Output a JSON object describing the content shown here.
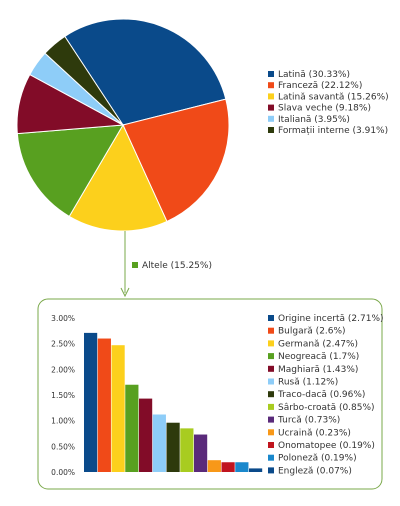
{
  "chart_data": [
    {
      "type": "pie",
      "title": "",
      "slices": [
        {
          "label": "Latină (30.33%)",
          "value": 30.33,
          "color": "#0a4a8a"
        },
        {
          "label": "Franceză (22.12%)",
          "value": 22.12,
          "color": "#f04a18"
        },
        {
          "label": "Latină savantă (15.26%)",
          "value": 15.26,
          "color": "#fcd01c"
        },
        {
          "label": "Altele (15.25%)",
          "value": 15.25,
          "color": "#58a020"
        },
        {
          "label": "Slava veche (9.18%)",
          "value": 9.18,
          "color": "#820c28"
        },
        {
          "label": "Italiană (3.95%)",
          "value": 3.95,
          "color": "#8ecdf8"
        },
        {
          "label": "Formații interne (3.91%)",
          "value": 3.91,
          "color": "#2e3a0c"
        }
      ],
      "legend": {
        "position": "right",
        "items": [
          {
            "label": "Latină (30.33%)",
            "color": "#0a4a8a"
          },
          {
            "label": "Franceză (22.12%)",
            "color": "#f04a18"
          },
          {
            "label": "Latină savantă (15.26%)",
            "color": "#fcd01c"
          },
          {
            "label": "Slava veche (9.18%)",
            "color": "#820c28"
          },
          {
            "label": "Italiană (3.95%)",
            "color": "#8ecdf8"
          },
          {
            "label": "Formații interne (3.91%)",
            "color": "#2e3a0c"
          }
        ]
      },
      "callout_label": "Altele (15.25%)",
      "callout_color": "#58a020"
    },
    {
      "type": "bar",
      "title": "",
      "xlabel": "",
      "ylabel": "",
      "ylim": [
        0,
        3.0
      ],
      "yticks": [
        "0.00%",
        "0.50%",
        "1.00%",
        "1.50%",
        "2.00%",
        "2.50%",
        "3.00%"
      ],
      "categories": [
        "Origine incertă",
        "Bulgară",
        "Germană",
        "Neogreacă",
        "Maghiară",
        "Rusă",
        "Traco-dacă",
        "Sârbo-croată",
        "Turcă",
        "Ucraină",
        "Onomatopee",
        "Poloneză",
        "Engleză"
      ],
      "values": [
        2.71,
        2.6,
        2.47,
        1.7,
        1.43,
        1.12,
        0.96,
        0.85,
        0.73,
        0.23,
        0.19,
        0.19,
        0.07
      ],
      "colors": [
        "#0a4a8a",
        "#f04a18",
        "#fcd01c",
        "#58a020",
        "#820c28",
        "#8ecdf8",
        "#2e3a0c",
        "#a8cc20",
        "#5a2a7a",
        "#f89818",
        "#c0141e",
        "#1a88cc",
        "#0a4a8a"
      ],
      "legend": {
        "position": "right",
        "items": [
          "Origine incertă (2.71%)",
          "Bulgară (2.6%)",
          "Germană (2.47%)",
          "Neogreacă (1.7%)",
          "Maghiară (1.43%)",
          "Rusă (1.12%)",
          "Traco-dacă (0.96%)",
          "Sârbo-croată (0.85%)",
          "Turcă (0.73%)",
          "Ucraină (0.23%)",
          "Onomatopee (0.19%)",
          "Poloneză (0.19%)",
          "Engleză (0.07%)"
        ]
      },
      "grid": false
    }
  ],
  "frame_color": "#7aa84a",
  "connector_color": "#7aa84a"
}
